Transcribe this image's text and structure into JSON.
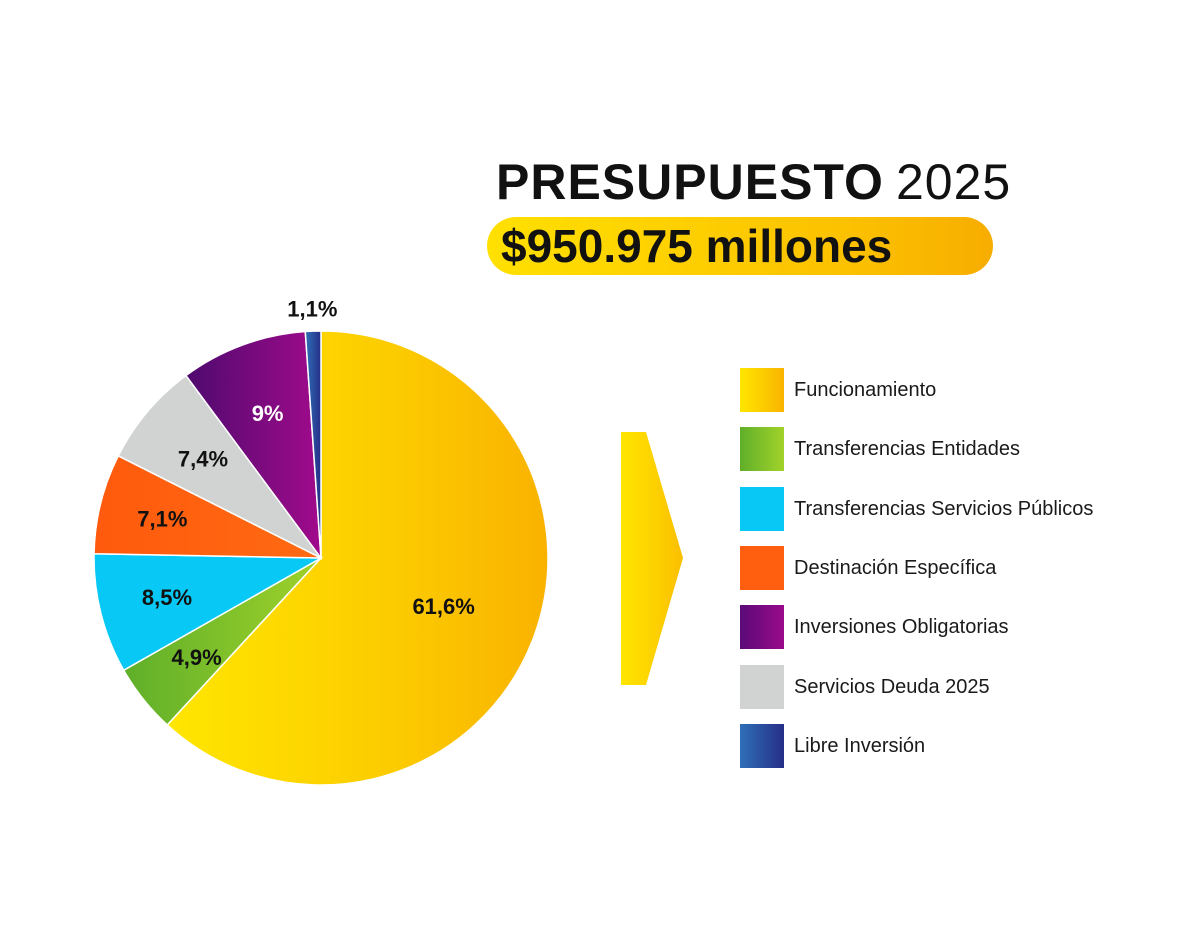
{
  "header": {
    "title_bold": "PRESUPUESTO",
    "title_year": "2025",
    "amount": "$950.975 millones"
  },
  "chart_data": {
    "type": "pie",
    "title": "PRESUPUESTO 2025",
    "subtitle": "$950.975 millones",
    "categories": [
      "Funcionamiento",
      "Transferencias Entidades",
      "Transferencias Servicios Públicos",
      "Destinación Específica",
      "Servicios Deuda 2025",
      "Inversiones Obligatorias",
      "Libre Inversión"
    ],
    "values": [
      61.6,
      4.9,
      8.5,
      7.1,
      7.4,
      9,
      1.1
    ],
    "data_labels": [
      "61,6%",
      "4,9%",
      "8,5%",
      "7,1%",
      "7,4%",
      "9%",
      "1,1%"
    ],
    "colors": [
      "#fdd000",
      "#7cc12a",
      "#08c8f5",
      "#ff5f0e",
      "#d1d3d2",
      "#8e0a88",
      "#27499e"
    ],
    "legend_position": "right"
  },
  "legend": [
    {
      "label": "Funcionamiento",
      "color": "#fdd000"
    },
    {
      "label": "Transferencias Entidades",
      "color": "#7cc12a"
    },
    {
      "label": "Transferencias Servicios Públicos",
      "color": "#08c8f5"
    },
    {
      "label": "Destinación Específica",
      "color": "#ff5f0e"
    },
    {
      "label": "Inversiones Obligatorias",
      "color": "#8e0a88"
    },
    {
      "label": "Servicios Deuda 2025",
      "color": "#d1d3d2"
    },
    {
      "label": "Libre Inversión",
      "color": "#27499e"
    }
  ]
}
